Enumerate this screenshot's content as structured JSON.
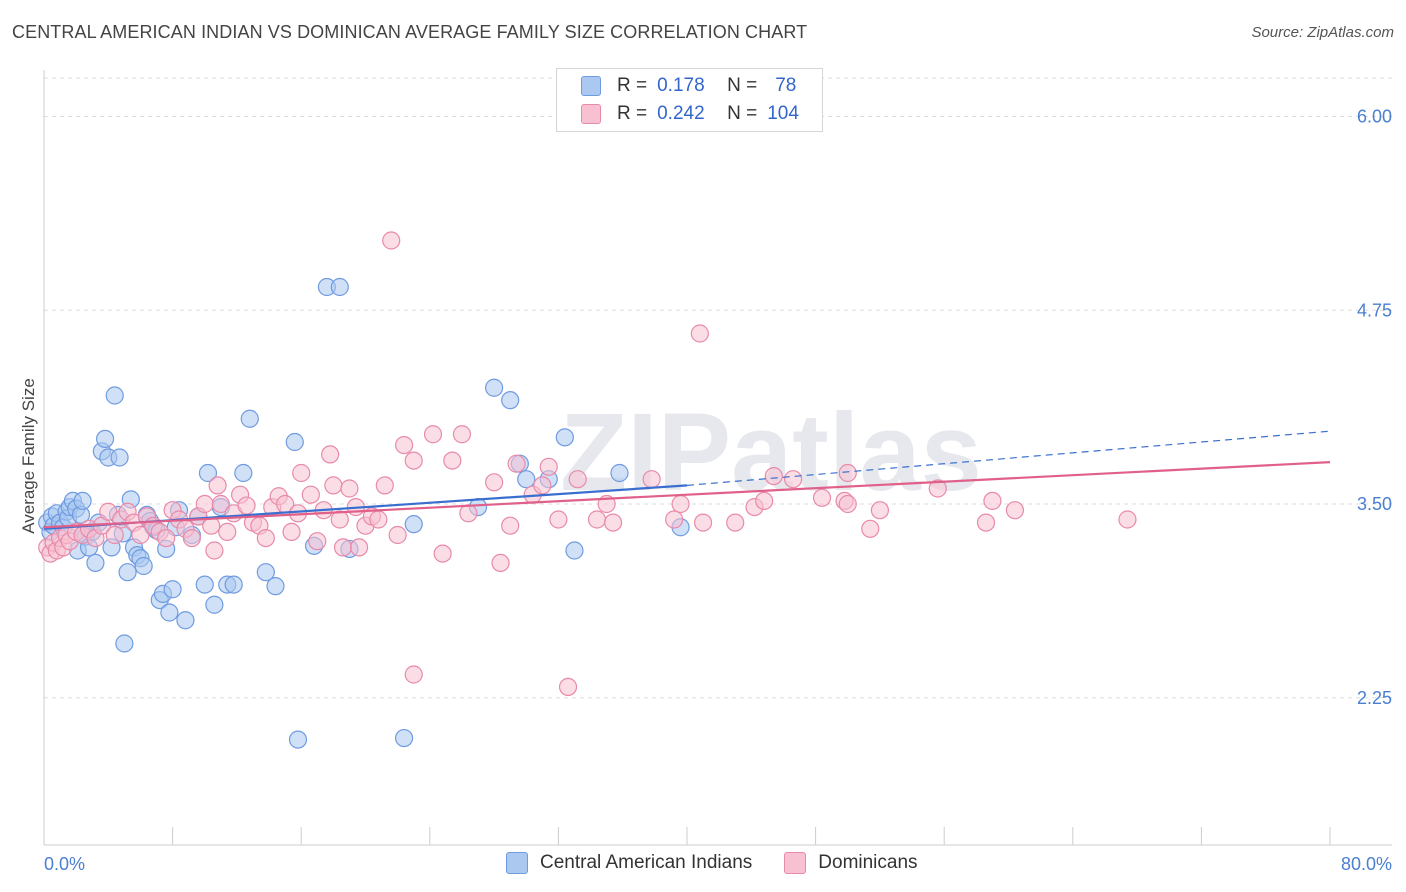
{
  "title": "CENTRAL AMERICAN INDIAN VS DOMINICAN AVERAGE FAMILY SIZE CORRELATION CHART",
  "source": "Source: ZipAtlas.com",
  "watermark": "ZIPatlas",
  "legend": {
    "rows": [
      {
        "r_label": "R =",
        "r_value": "0.178",
        "n_label": "N =",
        "n_value": "78",
        "color": "#aac8f0",
        "border": "#6f9be0"
      },
      {
        "r_label": "R =",
        "r_value": "0.242",
        "n_label": "N =",
        "n_value": "104",
        "color": "#f7c1d2",
        "border": "#e88aaa"
      }
    ]
  },
  "bottom_legend": [
    {
      "label": "Central American Indians",
      "color": "#aac8f0",
      "border": "#6f9be0"
    },
    {
      "label": "Dominicans",
      "color": "#f7c1d2",
      "border": "#e88aaa"
    }
  ],
  "chart_data": {
    "type": "scatter",
    "title": "CENTRAL AMERICAN INDIAN VS DOMINICAN AVERAGE FAMILY SIZE CORRELATION CHART",
    "xlabel": "",
    "ylabel": "Average Family Size",
    "xlim": [
      0,
      80
    ],
    "ylim": [
      1.3,
      6.3
    ],
    "x_tick_labels": [
      "0.0%",
      "80.0%"
    ],
    "y_ticks": [
      2.25,
      3.5,
      4.75,
      6.0
    ],
    "y_tick_labels": [
      "2.25",
      "3.50",
      "4.75",
      "6.00"
    ],
    "grid": true,
    "legend_position": "top-center",
    "series": [
      {
        "name": "Central American Indians",
        "color": "#6f9be0",
        "fill": "#aac8f0",
        "trend": {
          "x": [
            0,
            40
          ],
          "y": [
            3.34,
            3.62
          ],
          "dashed_to": [
            80,
            3.97
          ],
          "color": "#3a6fd0"
        },
        "points": [
          [
            0.2,
            3.38
          ],
          [
            0.4,
            3.32
          ],
          [
            0.5,
            3.42
          ],
          [
            0.6,
            3.36
          ],
          [
            0.8,
            3.44
          ],
          [
            1.0,
            3.38
          ],
          [
            1.2,
            3.35
          ],
          [
            1.4,
            3.45
          ],
          [
            1.5,
            3.41
          ],
          [
            1.6,
            3.48
          ],
          [
            1.8,
            3.52
          ],
          [
            2.0,
            3.47
          ],
          [
            2.1,
            3.2
          ],
          [
            2.3,
            3.43
          ],
          [
            2.4,
            3.52
          ],
          [
            2.5,
            3.31
          ],
          [
            2.6,
            3.29
          ],
          [
            2.8,
            3.22
          ],
          [
            3.0,
            3.32
          ],
          [
            3.2,
            3.12
          ],
          [
            3.4,
            3.38
          ],
          [
            3.6,
            3.84
          ],
          [
            3.8,
            3.92
          ],
          [
            4.0,
            3.8
          ],
          [
            4.2,
            3.22
          ],
          [
            4.4,
            4.2
          ],
          [
            4.6,
            3.43
          ],
          [
            4.7,
            3.8
          ],
          [
            4.9,
            3.31
          ],
          [
            5.0,
            2.6
          ],
          [
            5.2,
            3.06
          ],
          [
            5.4,
            3.53
          ],
          [
            5.6,
            3.22
          ],
          [
            5.8,
            3.17
          ],
          [
            6.0,
            3.15
          ],
          [
            6.2,
            3.1
          ],
          [
            6.4,
            3.43
          ],
          [
            6.6,
            3.39
          ],
          [
            6.8,
            3.35
          ],
          [
            7.0,
            3.33
          ],
          [
            7.2,
            2.88
          ],
          [
            7.4,
            2.92
          ],
          [
            7.6,
            3.21
          ],
          [
            7.8,
            2.8
          ],
          [
            8.0,
            2.95
          ],
          [
            8.2,
            3.35
          ],
          [
            8.4,
            3.46
          ],
          [
            8.8,
            2.75
          ],
          [
            9.2,
            3.3
          ],
          [
            9.6,
            3.42
          ],
          [
            10.0,
            2.98
          ],
          [
            10.2,
            3.7
          ],
          [
            10.6,
            2.85
          ],
          [
            11.0,
            3.48
          ],
          [
            11.4,
            2.98
          ],
          [
            11.8,
            2.98
          ],
          [
            12.4,
            3.7
          ],
          [
            12.8,
            4.05
          ],
          [
            13.8,
            3.06
          ],
          [
            14.4,
            2.97
          ],
          [
            15.6,
            3.9
          ],
          [
            15.8,
            1.98
          ],
          [
            16.8,
            3.23
          ],
          [
            17.6,
            4.9
          ],
          [
            18.4,
            4.9
          ],
          [
            19.0,
            3.21
          ],
          [
            22.4,
            1.99
          ],
          [
            23.0,
            3.37
          ],
          [
            27.0,
            3.48
          ],
          [
            28.0,
            4.25
          ],
          [
            29.0,
            4.17
          ],
          [
            29.6,
            3.76
          ],
          [
            30.0,
            3.66
          ],
          [
            31.4,
            3.66
          ],
          [
            32.4,
            3.93
          ],
          [
            33.0,
            3.2
          ],
          [
            35.8,
            3.7
          ],
          [
            39.6,
            3.35
          ]
        ]
      },
      {
        "name": "Dominicans",
        "color": "#e88aaa",
        "fill": "#f7c1d2",
        "trend": {
          "x": [
            0,
            80
          ],
          "y": [
            3.35,
            3.77
          ],
          "color": "#e0608a"
        },
        "points": [
          [
            0.2,
            3.22
          ],
          [
            0.4,
            3.18
          ],
          [
            0.6,
            3.25
          ],
          [
            0.8,
            3.2
          ],
          [
            1.0,
            3.28
          ],
          [
            1.2,
            3.22
          ],
          [
            1.4,
            3.3
          ],
          [
            1.6,
            3.26
          ],
          [
            2.0,
            3.32
          ],
          [
            2.4,
            3.3
          ],
          [
            2.8,
            3.34
          ],
          [
            3.2,
            3.28
          ],
          [
            3.6,
            3.36
          ],
          [
            4.0,
            3.45
          ],
          [
            4.4,
            3.3
          ],
          [
            4.8,
            3.4
          ],
          [
            5.2,
            3.45
          ],
          [
            5.6,
            3.38
          ],
          [
            6.0,
            3.3
          ],
          [
            6.4,
            3.42
          ],
          [
            6.8,
            3.36
          ],
          [
            7.2,
            3.32
          ],
          [
            7.6,
            3.28
          ],
          [
            8.0,
            3.46
          ],
          [
            8.4,
            3.4
          ],
          [
            8.8,
            3.34
          ],
          [
            9.2,
            3.28
          ],
          [
            9.6,
            3.42
          ],
          [
            10.0,
            3.5
          ],
          [
            10.4,
            3.36
          ],
          [
            10.6,
            3.2
          ],
          [
            10.8,
            3.62
          ],
          [
            11.0,
            3.5
          ],
          [
            11.4,
            3.32
          ],
          [
            11.8,
            3.44
          ],
          [
            12.2,
            3.56
          ],
          [
            12.6,
            3.49
          ],
          [
            13.0,
            3.38
          ],
          [
            13.4,
            3.36
          ],
          [
            13.8,
            3.28
          ],
          [
            14.2,
            3.48
          ],
          [
            14.6,
            3.55
          ],
          [
            15.0,
            3.5
          ],
          [
            15.4,
            3.32
          ],
          [
            15.8,
            3.44
          ],
          [
            16.0,
            3.7
          ],
          [
            16.6,
            3.56
          ],
          [
            17.0,
            3.26
          ],
          [
            17.4,
            3.46
          ],
          [
            17.8,
            3.82
          ],
          [
            18.0,
            3.62
          ],
          [
            18.4,
            3.4
          ],
          [
            18.6,
            3.22
          ],
          [
            19.0,
            3.6
          ],
          [
            19.4,
            3.48
          ],
          [
            19.6,
            3.22
          ],
          [
            20.0,
            3.36
          ],
          [
            20.4,
            3.42
          ],
          [
            20.8,
            3.4
          ],
          [
            21.2,
            3.62
          ],
          [
            21.6,
            5.2
          ],
          [
            22.0,
            3.3
          ],
          [
            22.4,
            3.88
          ],
          [
            23.0,
            3.78
          ],
          [
            23.0,
            2.4
          ],
          [
            24.2,
            3.95
          ],
          [
            24.8,
            3.18
          ],
          [
            25.4,
            3.78
          ],
          [
            26.0,
            3.95
          ],
          [
            26.4,
            3.44
          ],
          [
            28.0,
            3.64
          ],
          [
            28.4,
            3.12
          ],
          [
            29.0,
            3.36
          ],
          [
            29.4,
            3.76
          ],
          [
            30.4,
            3.56
          ],
          [
            31.0,
            3.62
          ],
          [
            31.4,
            3.74
          ],
          [
            32.0,
            3.4
          ],
          [
            32.6,
            2.32
          ],
          [
            33.2,
            3.66
          ],
          [
            34.4,
            3.4
          ],
          [
            35.0,
            3.5
          ],
          [
            35.4,
            3.38
          ],
          [
            37.8,
            3.66
          ],
          [
            39.2,
            3.4
          ],
          [
            39.6,
            3.5
          ],
          [
            41.0,
            3.38
          ],
          [
            40.8,
            4.6
          ],
          [
            43.0,
            3.38
          ],
          [
            44.2,
            3.48
          ],
          [
            44.8,
            3.52
          ],
          [
            45.4,
            3.68
          ],
          [
            46.6,
            3.66
          ],
          [
            48.4,
            3.54
          ],
          [
            49.8,
            3.52
          ],
          [
            50.0,
            3.7
          ],
          [
            50.0,
            3.5
          ],
          [
            51.4,
            3.34
          ],
          [
            52.0,
            3.46
          ],
          [
            55.6,
            3.6
          ],
          [
            58.6,
            3.38
          ],
          [
            59.0,
            3.52
          ],
          [
            60.4,
            3.46
          ],
          [
            67.4,
            3.4
          ]
        ]
      }
    ]
  }
}
